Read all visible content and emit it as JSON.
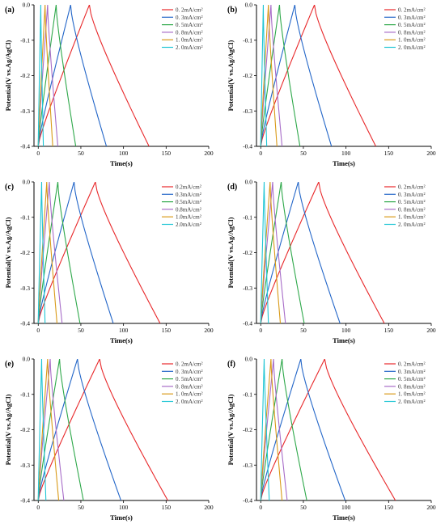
{
  "figure": {
    "legend_labels": [
      "0. 2mA/cm²",
      "0. 3mA/cm²",
      "0. 5mA/cm²",
      "0. 8mA/cm²",
      "1. 0mA/cm²",
      "2. 0mA/cm²"
    ],
    "legend_labels_c": [
      "0.2mA/cm²",
      "0.3mA/cm²",
      "0.5mA/cm²",
      "0.8mA/cm²",
      "1.0mA/cm²",
      "2.0mA/cm²"
    ],
    "series_colors": [
      "#e8282a",
      "#2366c8",
      "#2ea84a",
      "#a76cc8",
      "#d99a18",
      "#1fc5d4"
    ]
  },
  "chart_data": [
    {
      "panel": "(a)",
      "type": "line",
      "xlabel": "Time(s)",
      "ylabel": "Potential(V vs.Ag/AgCl)",
      "xlim": [
        -5,
        200
      ],
      "ylim": [
        -0.4,
        0.0
      ],
      "xticks": [
        0,
        50,
        100,
        150,
        200
      ],
      "yticks": [
        0.0,
        -0.1,
        -0.2,
        -0.3,
        -0.4
      ],
      "yticklabels": [
        "0.0",
        "-0.1",
        "-0.2",
        "-0.3",
        "-0.4"
      ],
      "legend": "top-right",
      "series": [
        {
          "name": "0. 2mA/cm²",
          "charge_end": 60,
          "discharge_end": 130
        },
        {
          "name": "0. 3mA/cm²",
          "charge_end": 38,
          "discharge_end": 80
        },
        {
          "name": "0. 5mA/cm²",
          "charge_end": 21,
          "discharge_end": 44
        },
        {
          "name": "0. 8mA/cm²",
          "charge_end": 11,
          "discharge_end": 23
        },
        {
          "name": "1. 0mA/cm²",
          "charge_end": 8,
          "discharge_end": 17
        },
        {
          "name": "2. 0mA/cm²",
          "charge_end": 3,
          "discharge_end": 6
        }
      ]
    },
    {
      "panel": "(b)",
      "type": "line",
      "xlabel": "Time(s)",
      "ylabel": "Potential(V vs.Ag/AgCl)",
      "xlim": [
        -5,
        200
      ],
      "ylim": [
        -0.4,
        0.0
      ],
      "xticks": [
        0,
        50,
        100,
        150,
        200
      ],
      "yticks": [
        0.0,
        -0.1,
        -0.2,
        -0.3,
        -0.4
      ],
      "yticklabels": [
        "0.0",
        "-0.1",
        "-0.2",
        "-0.3",
        "-0.4"
      ],
      "legend": "top-right",
      "series": [
        {
          "name": "0. 2mA/cm²",
          "charge_end": 63,
          "discharge_end": 135
        },
        {
          "name": "0. 3mA/cm²",
          "charge_end": 40,
          "discharge_end": 83
        },
        {
          "name": "0. 5mA/cm²",
          "charge_end": 22,
          "discharge_end": 46
        },
        {
          "name": "0. 8mA/cm²",
          "charge_end": 12,
          "discharge_end": 25
        },
        {
          "name": "1. 0mA/cm²",
          "charge_end": 9,
          "discharge_end": 19
        },
        {
          "name": "2. 0mA/cm²",
          "charge_end": 3,
          "discharge_end": 7
        }
      ]
    },
    {
      "panel": "(c)",
      "type": "line",
      "xlabel": "Time(s)",
      "ylabel": "Potential(V vs.Ag/AgCl)",
      "xlim": [
        -5,
        200
      ],
      "ylim": [
        -0.4,
        0.0
      ],
      "xticks": [
        0,
        50,
        100,
        150,
        200
      ],
      "yticks": [
        0.0,
        -0.1,
        -0.2,
        -0.3,
        -0.4
      ],
      "yticklabels": [
        "0.0",
        "-0.1",
        "-0.2",
        "-0.3",
        "-0.4"
      ],
      "legend": "top-right",
      "series": [
        {
          "name": "0.2mA/cm²",
          "charge_end": 67,
          "discharge_end": 143
        },
        {
          "name": "0.3mA/cm²",
          "charge_end": 42,
          "discharge_end": 88
        },
        {
          "name": "0.5mA/cm²",
          "charge_end": 23,
          "discharge_end": 49
        },
        {
          "name": "0.8mA/cm²",
          "charge_end": 13,
          "discharge_end": 28
        },
        {
          "name": "1.0mA/cm²",
          "charge_end": 10,
          "discharge_end": 22
        },
        {
          "name": "2.0mA/cm²",
          "charge_end": 4,
          "discharge_end": 8
        }
      ]
    },
    {
      "panel": "(d)",
      "type": "line",
      "xlabel": "Time(s)",
      "ylabel": "Potential(V vs.Ag/AgCl)",
      "xlim": [
        -5,
        200
      ],
      "ylim": [
        -0.4,
        0.0
      ],
      "xticks": [
        0,
        50,
        100,
        150,
        200
      ],
      "yticks": [
        0.0,
        -0.1,
        -0.2,
        -0.3,
        -0.4
      ],
      "yticklabels": [
        "0.0",
        "-0.1",
        "-0.2",
        "-0.3",
        "-0.4"
      ],
      "legend": "top-right",
      "series": [
        {
          "name": "0. 2mA/cm²",
          "charge_end": 68,
          "discharge_end": 145
        },
        {
          "name": "0. 3mA/cm²",
          "charge_end": 44,
          "discharge_end": 93
        },
        {
          "name": "0. 5mA/cm²",
          "charge_end": 24,
          "discharge_end": 51
        },
        {
          "name": "0. 8mA/cm²",
          "charge_end": 14,
          "discharge_end": 29
        },
        {
          "name": "1. 0mA/cm²",
          "charge_end": 11,
          "discharge_end": 23
        },
        {
          "name": "2. 0mA/cm²",
          "charge_end": 4,
          "discharge_end": 9
        }
      ]
    },
    {
      "panel": "(e)",
      "type": "line",
      "xlabel": "Time(s)",
      "ylabel": "Potential(V vs.Ag/AgCl)",
      "xlim": [
        -5,
        200
      ],
      "ylim": [
        -0.4,
        0.0
      ],
      "xticks": [
        0,
        50,
        100,
        150,
        200
      ],
      "yticks": [
        0.0,
        -0.1,
        -0.2,
        -0.3,
        -0.4
      ],
      "yticklabels": [
        "0.0",
        "-0.1",
        "-0.2",
        "-0.3",
        "-0.4"
      ],
      "legend": "top-right",
      "series": [
        {
          "name": "0. 2mA/cm²",
          "charge_end": 72,
          "discharge_end": 152
        },
        {
          "name": "0. 3mA/cm²",
          "charge_end": 46,
          "discharge_end": 97
        },
        {
          "name": "0. 5mA/cm²",
          "charge_end": 25,
          "discharge_end": 53
        },
        {
          "name": "0. 8mA/cm²",
          "charge_end": 14,
          "discharge_end": 30
        },
        {
          "name": "1. 0mA/cm²",
          "charge_end": 11,
          "discharge_end": 24
        },
        {
          "name": "2. 0mA/cm²",
          "charge_end": 4,
          "discharge_end": 9
        }
      ]
    },
    {
      "panel": "(f)",
      "type": "line",
      "xlabel": "Time(s)",
      "ylabel": "Potential(V vs.Ag/AgCl)",
      "xlim": [
        -5,
        200
      ],
      "ylim": [
        -0.4,
        0.0
      ],
      "xticks": [
        0,
        50,
        100,
        150,
        200
      ],
      "yticks": [
        0.0,
        -0.1,
        -0.2,
        -0.3,
        -0.4
      ],
      "yticklabels": [
        "0.0",
        "-0.1",
        "-0.2",
        "-0.3",
        "-0.4"
      ],
      "legend": "top-right",
      "series": [
        {
          "name": "0. 2mA/cm²",
          "charge_end": 75,
          "discharge_end": 158
        },
        {
          "name": "0. 3mA/cm²",
          "charge_end": 47,
          "discharge_end": 99
        },
        {
          "name": "0. 5mA/cm²",
          "charge_end": 25,
          "discharge_end": 54
        },
        {
          "name": "0. 8mA/cm²",
          "charge_end": 15,
          "discharge_end": 31
        },
        {
          "name": "1. 0mA/cm²",
          "charge_end": 12,
          "discharge_end": 25
        },
        {
          "name": "2. 0mA/cm²",
          "charge_end": 4,
          "discharge_end": 10
        }
      ]
    }
  ]
}
